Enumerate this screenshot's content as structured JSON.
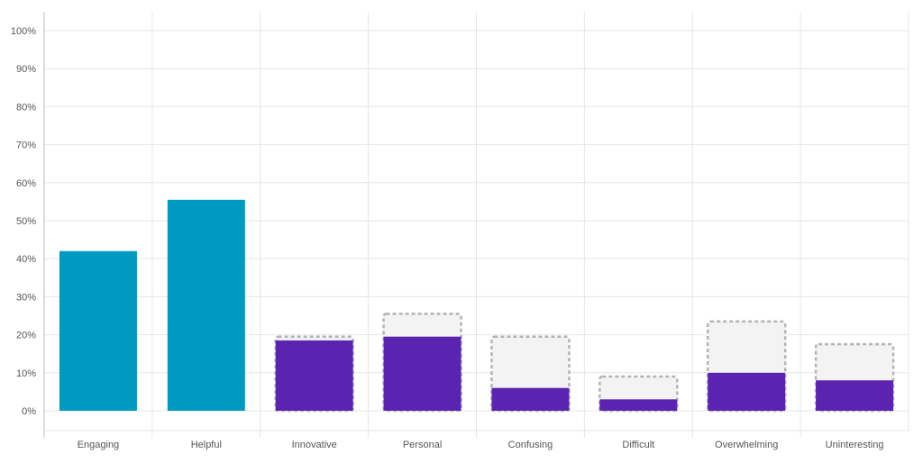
{
  "chart_data": {
    "type": "bar",
    "categories": [
      "Engaging",
      "Helpful",
      "Innovative",
      "Personal",
      "Confusing",
      "Difficult",
      "Overwhelming",
      "Uninteresting"
    ],
    "values": [
      42,
      55.5,
      18.5,
      19.5,
      6,
      3,
      10,
      8
    ],
    "benchmark": [
      null,
      null,
      19.5,
      25.5,
      19.5,
      9,
      23.5,
      17.5
    ],
    "bar_colors": [
      "#0099BF",
      "#0099BF",
      "#5B24B0",
      "#5B24B0",
      "#5B24B0",
      "#5B24B0",
      "#5B24B0",
      "#5B24B0"
    ],
    "benchmark_fill": "#F3F3F3",
    "benchmark_stroke": "#B3B3B3",
    "ylim": [
      0,
      100
    ],
    "yticks": [
      0,
      10,
      20,
      30,
      40,
      50,
      60,
      70,
      80,
      90,
      100
    ],
    "ytick_labels": [
      "0%",
      "10%",
      "20%",
      "30%",
      "40%",
      "50%",
      "60%",
      "70%",
      "80%",
      "90%",
      "100%"
    ],
    "grid": true,
    "grid_color": "#E6E6E6",
    "axis_color": "#BBBBBB"
  }
}
